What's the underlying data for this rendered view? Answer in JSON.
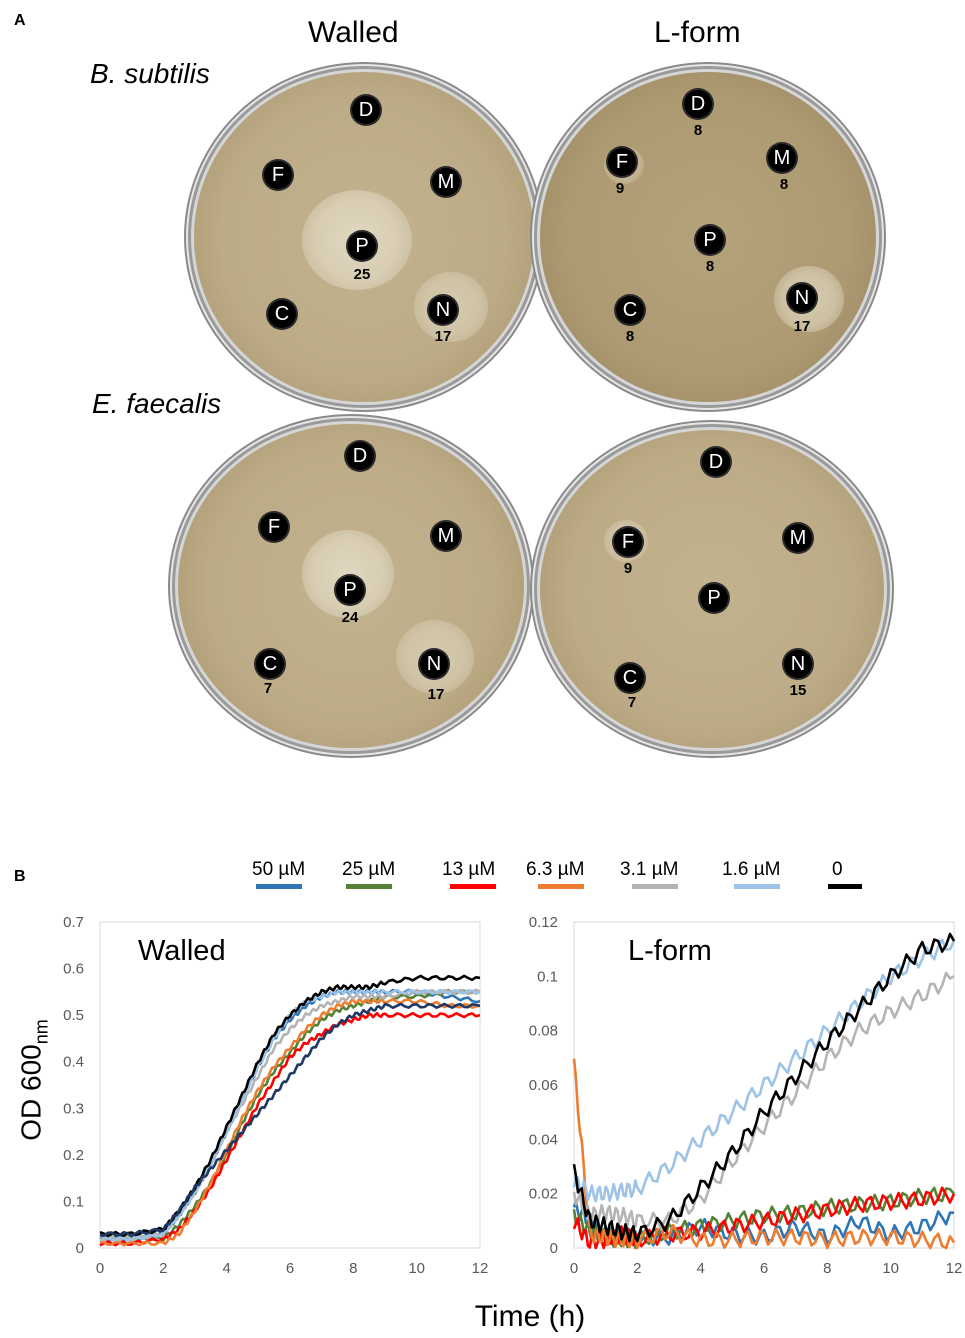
{
  "panel_a": {
    "letter": "A",
    "columns": [
      "Walled",
      "L-form"
    ],
    "species": [
      "B. subtilis",
      "E. faecalis"
    ],
    "plates": [
      {
        "discs": [
          {
            "l": "D",
            "n": ""
          },
          {
            "l": "F",
            "n": ""
          },
          {
            "l": "M",
            "n": ""
          },
          {
            "l": "P",
            "n": "25"
          },
          {
            "l": "C",
            "n": ""
          },
          {
            "l": "N",
            "n": "17"
          }
        ]
      },
      {
        "discs": [
          {
            "l": "D",
            "n": "8"
          },
          {
            "l": "F",
            "n": "9"
          },
          {
            "l": "M",
            "n": "8"
          },
          {
            "l": "P",
            "n": "8"
          },
          {
            "l": "C",
            "n": "8"
          },
          {
            "l": "N",
            "n": "17"
          }
        ]
      },
      {
        "discs": [
          {
            "l": "D",
            "n": ""
          },
          {
            "l": "F",
            "n": ""
          },
          {
            "l": "M",
            "n": ""
          },
          {
            "l": "P",
            "n": "24"
          },
          {
            "l": "C",
            "n": "7"
          },
          {
            "l": "N",
            "n": "17"
          }
        ]
      },
      {
        "discs": [
          {
            "l": "D",
            "n": ""
          },
          {
            "l": "F",
            "n": "9"
          },
          {
            "l": "M",
            "n": ""
          },
          {
            "l": "P",
            "n": ""
          },
          {
            "l": "C",
            "n": "7"
          },
          {
            "l": "N",
            "n": "15"
          }
        ]
      }
    ]
  },
  "panel_b": {
    "letter": "B",
    "ylabel": "OD 600",
    "ylabel_sub": "nm",
    "xlabel": "Time (h)",
    "legend": [
      {
        "name": "50 µM",
        "color": "#2e75b6"
      },
      {
        "name": "25 µM",
        "color": "#548235"
      },
      {
        "name": "13 µM",
        "color": "#ff0000"
      },
      {
        "name": "6.3 µM",
        "color": "#ed7d31"
      },
      {
        "name": "3.1 µM",
        "color": "#b4b4b4"
      },
      {
        "name": "1.6 µM",
        "color": "#9dc3e6"
      },
      {
        "name": "0",
        "color": "#000000"
      }
    ]
  },
  "chart_data": [
    {
      "type": "line",
      "title": "Walled",
      "xlim": [
        0,
        12
      ],
      "ylim": [
        0,
        0.7
      ],
      "xticks": [
        0,
        2,
        4,
        6,
        8,
        10,
        12
      ],
      "yticks": [
        "0",
        "0.1",
        "0.2",
        "0.3",
        "0.4",
        "0.5",
        "0.6",
        "0.7"
      ],
      "x": [
        0,
        1,
        2,
        2.5,
        3,
        3.5,
        4,
        4.5,
        5,
        5.5,
        6,
        6.5,
        7,
        7.5,
        8,
        8.5,
        9,
        10,
        11,
        12
      ],
      "series": [
        {
          "name": "50 µM",
          "color": "#2e75b6",
          "values": [
            0.02,
            0.02,
            0.03,
            0.07,
            0.12,
            0.18,
            0.25,
            0.32,
            0.39,
            0.45,
            0.49,
            0.52,
            0.54,
            0.55,
            0.55,
            0.55,
            0.55,
            0.55,
            0.54,
            0.53
          ]
        },
        {
          "name": "25 µM",
          "color": "#548235",
          "values": [
            0.02,
            0.02,
            0.02,
            0.05,
            0.09,
            0.14,
            0.2,
            0.27,
            0.33,
            0.38,
            0.42,
            0.46,
            0.49,
            0.51,
            0.52,
            0.53,
            0.54,
            0.54,
            0.55,
            0.55
          ]
        },
        {
          "name": "13 µM",
          "color": "#ff0000",
          "values": [
            0.01,
            0.01,
            0.02,
            0.04,
            0.08,
            0.13,
            0.19,
            0.25,
            0.31,
            0.36,
            0.41,
            0.44,
            0.46,
            0.48,
            0.49,
            0.5,
            0.5,
            0.5,
            0.5,
            0.5
          ]
        },
        {
          "name": "6.3 µM",
          "color": "#ed7d31",
          "values": [
            0.01,
            0.01,
            0.01,
            0.03,
            0.08,
            0.14,
            0.21,
            0.28,
            0.34,
            0.39,
            0.43,
            0.47,
            0.5,
            0.52,
            0.53,
            0.53,
            0.53,
            0.53,
            0.52,
            0.52
          ]
        },
        {
          "name": "3.1 µM",
          "color": "#b4b4b4",
          "values": [
            0.02,
            0.02,
            0.03,
            0.07,
            0.12,
            0.18,
            0.25,
            0.31,
            0.37,
            0.43,
            0.47,
            0.5,
            0.52,
            0.53,
            0.54,
            0.54,
            0.54,
            0.55,
            0.55,
            0.55
          ]
        },
        {
          "name": "1.6 µM",
          "color": "#9dc3e6",
          "values": [
            0.02,
            0.02,
            0.03,
            0.07,
            0.12,
            0.18,
            0.25,
            0.32,
            0.39,
            0.45,
            0.5,
            0.53,
            0.54,
            0.55,
            0.55,
            0.55,
            0.55,
            0.55,
            0.55,
            0.55
          ]
        },
        {
          "name": "0",
          "color": "#000000",
          "values": [
            0.03,
            0.03,
            0.04,
            0.08,
            0.13,
            0.19,
            0.26,
            0.33,
            0.4,
            0.46,
            0.5,
            0.53,
            0.55,
            0.56,
            0.56,
            0.56,
            0.57,
            0.58,
            0.58,
            0.58
          ]
        },
        {
          "name": "",
          "color": "#1f3864",
          "values": [
            0.03,
            0.03,
            0.04,
            0.08,
            0.13,
            0.17,
            0.21,
            0.25,
            0.29,
            0.33,
            0.37,
            0.41,
            0.45,
            0.48,
            0.5,
            0.51,
            0.52,
            0.52,
            0.52,
            0.52
          ]
        }
      ]
    },
    {
      "type": "line",
      "title": "L-form",
      "xlim": [
        0,
        12
      ],
      "ylim": [
        0,
        0.12
      ],
      "xticks": [
        0,
        2,
        4,
        6,
        8,
        10,
        12
      ],
      "yticks": [
        "0",
        "0.02",
        "0.04",
        "0.06",
        "0.08",
        "0.1",
        "0.12"
      ],
      "x": [
        0,
        0.5,
        1,
        1.5,
        2,
        3,
        4,
        5,
        6,
        7,
        8,
        9,
        10,
        11,
        12
      ],
      "series": [
        {
          "name": "50 µM",
          "color": "#2e75b6",
          "values": [
            0.015,
            0.01,
            0.005,
            0.005,
            0.004,
            0.004,
            0.008,
            0.005,
            0.004,
            0.008,
            0.004,
            0.01,
            0.005,
            0.008,
            0.013
          ]
        },
        {
          "name": "25 µM",
          "color": "#548235",
          "values": [
            0.012,
            0.006,
            0.004,
            0.003,
            0.003,
            0.006,
            0.008,
            0.01,
            0.012,
            0.013,
            0.015,
            0.016,
            0.017,
            0.019,
            0.02
          ]
        },
        {
          "name": "13 µM",
          "color": "#ff0000",
          "values": [
            0.01,
            0.002,
            0.003,
            0.005,
            0.003,
            0.005,
            0.006,
            0.008,
            0.01,
            0.012,
            0.014,
            0.016,
            0.017,
            0.018,
            0.02
          ]
        },
        {
          "name": "6.3 µM",
          "color": "#ed7d31",
          "values": [
            0.068,
            0.005,
            0.004,
            0.003,
            0.003,
            0.006,
            0.003,
            0.003,
            0.004,
            0.004,
            0.003,
            0.004,
            0.004,
            0.003,
            0.002
          ]
        },
        {
          "name": "3.1 µM",
          "color": "#b4b4b4",
          "values": [
            0.02,
            0.012,
            0.013,
            0.012,
            0.01,
            0.01,
            0.018,
            0.032,
            0.045,
            0.057,
            0.07,
            0.08,
            0.087,
            0.093,
            0.1
          ]
        },
        {
          "name": "1.6 µM",
          "color": "#9dc3e6",
          "values": [
            0.025,
            0.02,
            0.02,
            0.021,
            0.022,
            0.03,
            0.04,
            0.05,
            0.06,
            0.07,
            0.08,
            0.09,
            0.1,
            0.107,
            0.113
          ]
        },
        {
          "name": "0",
          "color": "#000000",
          "values": [
            0.028,
            0.01,
            0.008,
            0.006,
            0.005,
            0.01,
            0.022,
            0.035,
            0.05,
            0.063,
            0.076,
            0.088,
            0.1,
            0.11,
            0.113
          ]
        }
      ]
    }
  ]
}
